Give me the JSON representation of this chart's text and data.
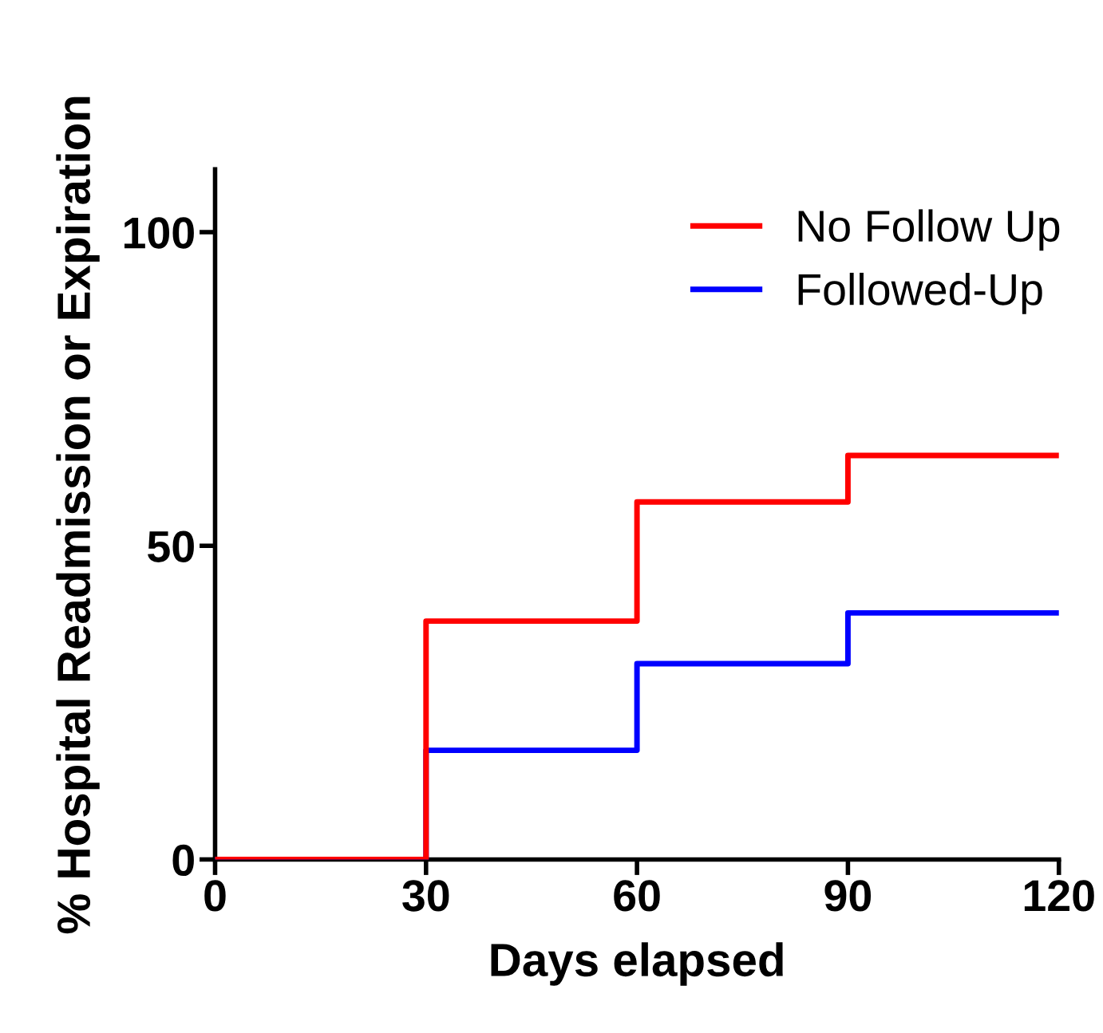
{
  "chart_data": {
    "type": "step",
    "xlabel": "Days elapsed",
    "ylabel": "% Hospital Readmission or Expiration",
    "x": [
      0,
      30,
      60,
      90,
      120
    ],
    "series": [
      {
        "name": "No Follow Up",
        "color": "#ff0000",
        "values": [
          0,
          38,
          57,
          64.4,
          64.4
        ]
      },
      {
        "name": "Followed-Up",
        "color": "#0000ff",
        "values": [
          0,
          17.4,
          31.2,
          39.3,
          39.3
        ]
      }
    ],
    "xlim": [
      0,
      120
    ],
    "xticks": [
      0,
      30,
      60,
      90,
      120
    ],
    "ylim": [
      0,
      110
    ],
    "yticks": [
      0,
      50,
      100
    ],
    "grid": false,
    "legend": "top right"
  }
}
